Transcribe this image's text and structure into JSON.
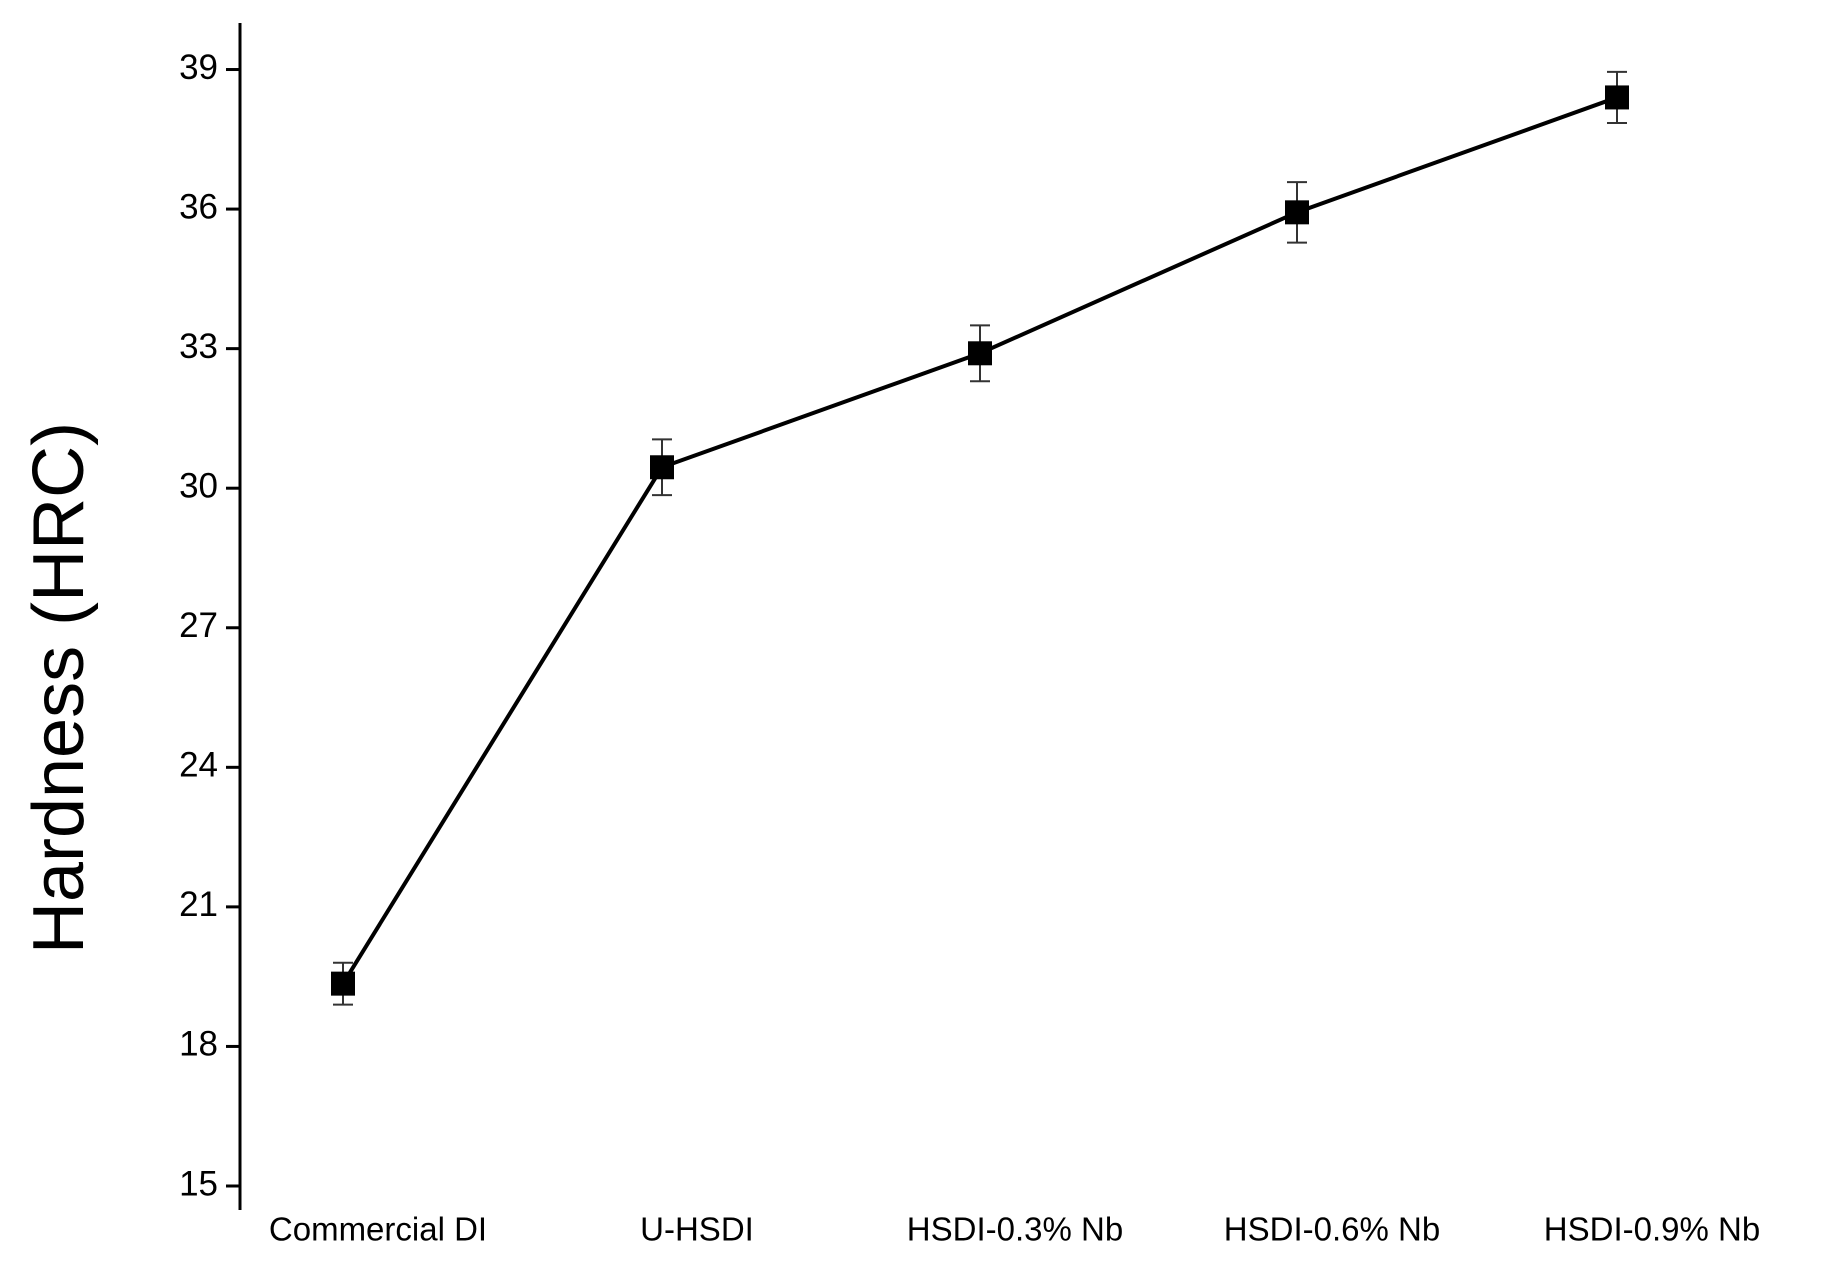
{
  "chart_data": {
    "type": "line",
    "y_label": "Hardness (HRC)",
    "categories": [
      "Commercial DI",
      "U-HSDI",
      "HSDI-0.3% Nb",
      "HSDI-0.6% Nb",
      "HSDI-0.9% Nb"
    ],
    "values": [
      19.35,
      30.45,
      32.9,
      35.93,
      38.4
    ],
    "errors": [
      0.45,
      0.6,
      0.6,
      0.65,
      0.55
    ],
    "color": "#000000",
    "ylim": [
      15,
      40
    ],
    "yticks": [
      15,
      18,
      21,
      24,
      27,
      30,
      33,
      36,
      39
    ],
    "grid": false
  }
}
